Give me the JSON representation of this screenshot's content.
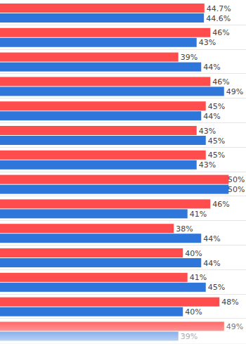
{
  "chart_data": {
    "type": "bar",
    "orientation": "horizontal",
    "data_labels": true,
    "tick_labels": false,
    "grid": false,
    "categories": [
      null,
      null,
      null,
      null,
      null,
      null,
      null,
      null,
      null,
      null,
      null,
      null,
      null,
      null
    ],
    "xlim": [
      0,
      53.8
    ],
    "series": [
      {
        "color": "#ff4d4d",
        "values": [
          44.7,
          46,
          39,
          46,
          45,
          43,
          45,
          50,
          46,
          38,
          40,
          41,
          48,
          49
        ],
        "value_labels": [
          "44.7%",
          "46%",
          "39%",
          "46%",
          "45%",
          "43%",
          "45%",
          "50%",
          "46%",
          "38%",
          "40%",
          "41%",
          "48%",
          "49%"
        ]
      },
      {
        "color": "#2f76db",
        "values": [
          44.6,
          43,
          44,
          49,
          44,
          45,
          43,
          50,
          41,
          44,
          44,
          45,
          40,
          39
        ],
        "value_labels": [
          "44.6%",
          "43%",
          "44%",
          "49%",
          "44%",
          "45%",
          "43%",
          "50%",
          "41%",
          "44%",
          "44%",
          "45%",
          "40%",
          "39%"
        ]
      }
    ]
  }
}
